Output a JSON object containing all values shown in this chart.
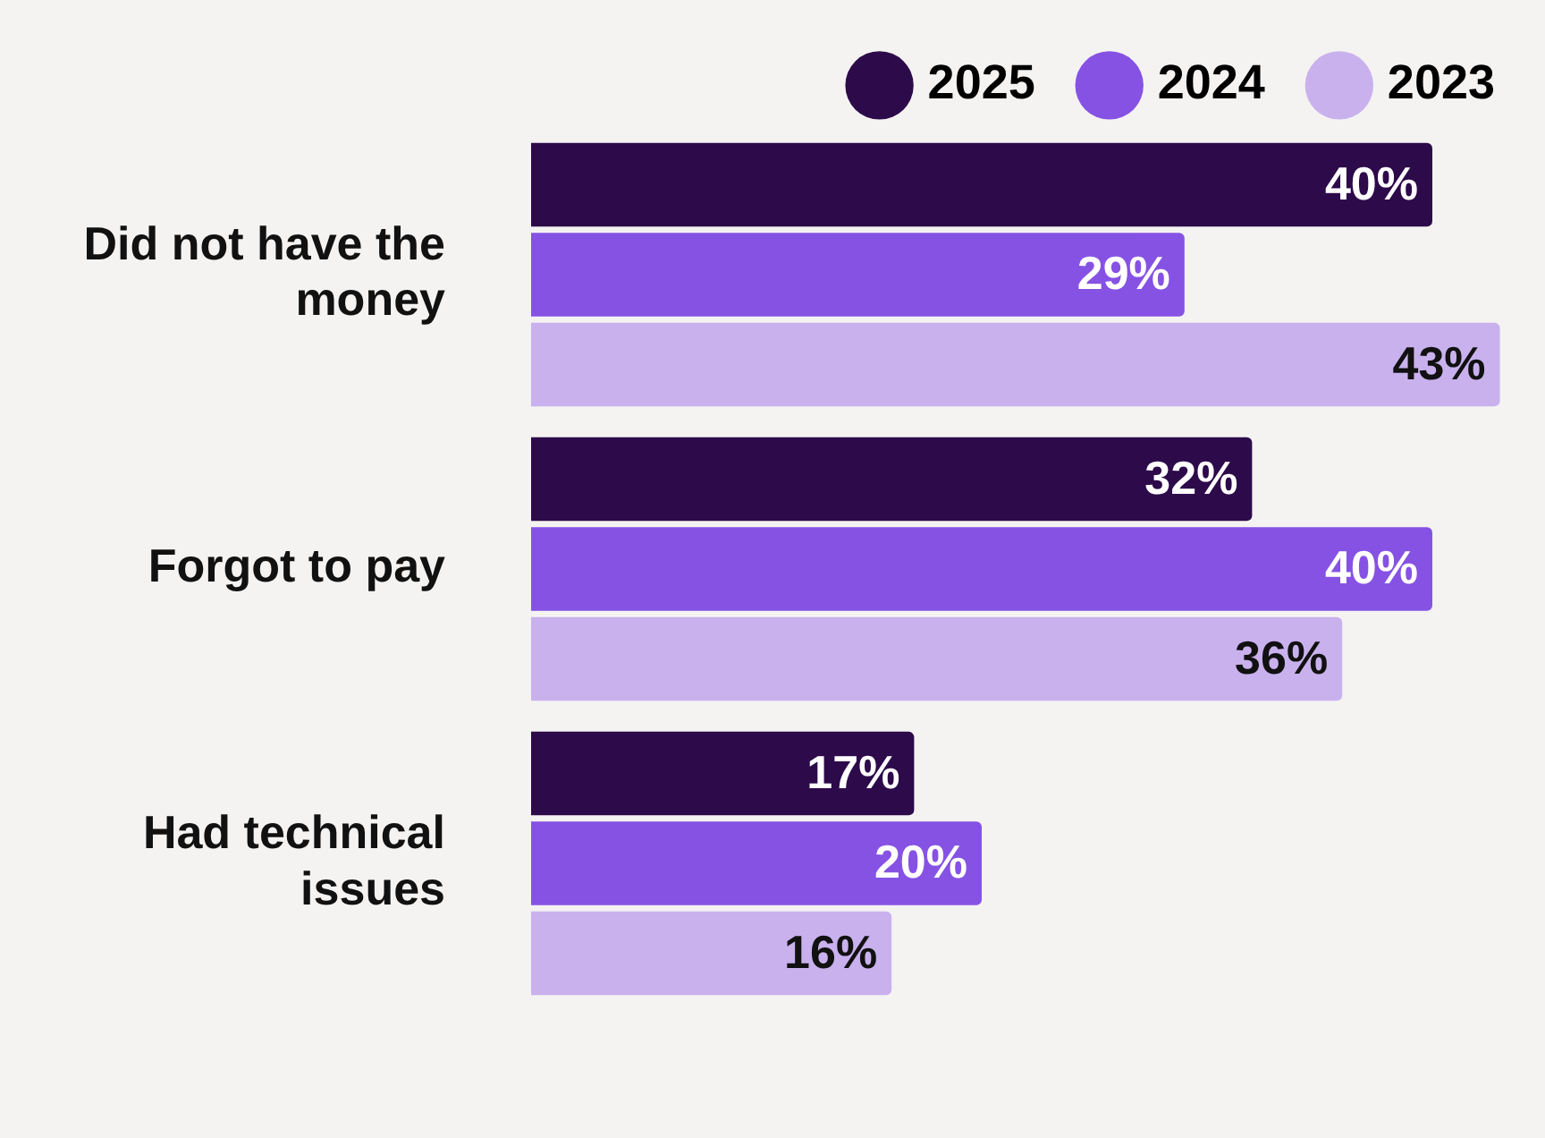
{
  "chart_data": {
    "type": "bar",
    "orientation": "horizontal",
    "categories": [
      "Did not have the money",
      "Forgot to pay",
      "Had technical issues"
    ],
    "series": [
      {
        "name": "2025",
        "color": "#2d0a4a",
        "values": [
          40,
          32,
          17
        ],
        "value_labels": [
          "40%",
          "32%",
          "17%"
        ]
      },
      {
        "name": "2024",
        "color": "#8652e4",
        "values": [
          29,
          40,
          20
        ],
        "value_labels": [
          "29%",
          "40%",
          "20%"
        ]
      },
      {
        "name": "2023",
        "color": "#c9b1ee",
        "values": [
          43,
          36,
          16
        ],
        "value_labels": [
          "43%",
          "36%",
          "16%"
        ]
      }
    ],
    "legend": "top right",
    "tick_labels": "y"
  }
}
